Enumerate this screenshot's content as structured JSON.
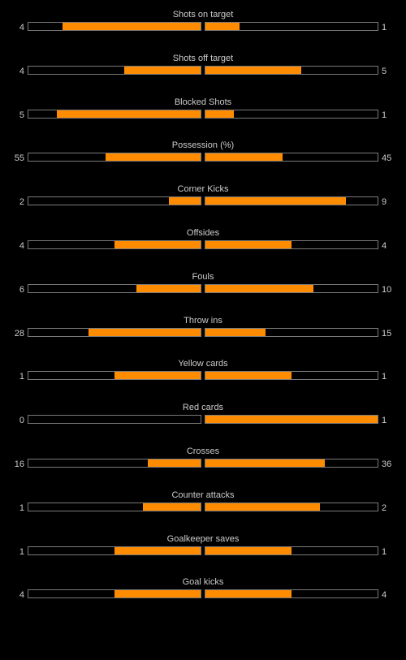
{
  "colors": {
    "background": "#000000",
    "text": "#cccccc",
    "bar_fill": "#ff8c00",
    "bar_border": "#7a7a7a"
  },
  "stats": [
    {
      "label": "Shots on target",
      "home": "4",
      "away": "1",
      "home_fill": 0.8,
      "away_fill": 0.2
    },
    {
      "label": "Shots off target",
      "home": "4",
      "away": "5",
      "home_fill": 0.444,
      "away_fill": 0.556
    },
    {
      "label": "Blocked Shots",
      "home": "5",
      "away": "1",
      "home_fill": 0.833,
      "away_fill": 0.167
    },
    {
      "label": "Possession (%)",
      "home": "55",
      "away": "45",
      "home_fill": 0.55,
      "away_fill": 0.45
    },
    {
      "label": "Corner Kicks",
      "home": "2",
      "away": "9",
      "home_fill": 0.182,
      "away_fill": 0.818
    },
    {
      "label": "Offsides",
      "home": "4",
      "away": "4",
      "home_fill": 0.5,
      "away_fill": 0.5
    },
    {
      "label": "Fouls",
      "home": "6",
      "away": "10",
      "home_fill": 0.375,
      "away_fill": 0.625
    },
    {
      "label": "Throw ins",
      "home": "28",
      "away": "15",
      "home_fill": 0.651,
      "away_fill": 0.349
    },
    {
      "label": "Yellow cards",
      "home": "1",
      "away": "1",
      "home_fill": 0.5,
      "away_fill": 0.5
    },
    {
      "label": "Red cards",
      "home": "0",
      "away": "1",
      "home_fill": 0.0,
      "away_fill": 1.0
    },
    {
      "label": "Crosses",
      "home": "16",
      "away": "36",
      "home_fill": 0.308,
      "away_fill": 0.692
    },
    {
      "label": "Counter attacks",
      "home": "1",
      "away": "2",
      "home_fill": 0.333,
      "away_fill": 0.667
    },
    {
      "label": "Goalkeeper saves",
      "home": "1",
      "away": "1",
      "home_fill": 0.5,
      "away_fill": 0.5
    },
    {
      "label": "Goal kicks",
      "home": "4",
      "away": "4",
      "home_fill": 0.5,
      "away_fill": 0.5
    }
  ]
}
